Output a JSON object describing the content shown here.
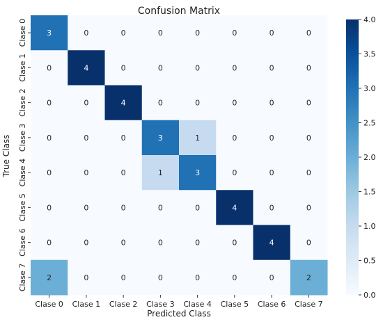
{
  "chart_data": {
    "type": "heatmap",
    "title": "Confusion Matrix",
    "xlabel": "Predicted Class",
    "ylabel": "True Class",
    "x_categories": [
      "Clase 0",
      "Clase 1",
      "Clase 2",
      "Clase 3",
      "Clase 4",
      "Clase 5",
      "Clase 6",
      "Clase 7"
    ],
    "y_categories": [
      "Clase 0",
      "Clase 1",
      "Clase 2",
      "Clase 3",
      "Clase 4",
      "Clase 5",
      "Clase 6",
      "Clase 7"
    ],
    "values": [
      [
        3,
        0,
        0,
        0,
        0,
        0,
        0,
        0
      ],
      [
        0,
        4,
        0,
        0,
        0,
        0,
        0,
        0
      ],
      [
        0,
        0,
        4,
        0,
        0,
        0,
        0,
        0
      ],
      [
        0,
        0,
        0,
        3,
        1,
        0,
        0,
        0
      ],
      [
        0,
        0,
        0,
        1,
        3,
        0,
        0,
        0
      ],
      [
        0,
        0,
        0,
        0,
        0,
        4,
        0,
        0
      ],
      [
        0,
        0,
        0,
        0,
        0,
        0,
        4,
        0
      ],
      [
        2,
        0,
        0,
        0,
        0,
        0,
        0,
        2
      ]
    ],
    "colorbar": {
      "range": [
        0.0,
        4.0
      ],
      "ticks": [
        "0.0",
        "0.5",
        "1.0",
        "1.5",
        "2.0",
        "2.5",
        "3.0",
        "3.5",
        "4.0"
      ],
      "colormap": "Blues"
    }
  }
}
